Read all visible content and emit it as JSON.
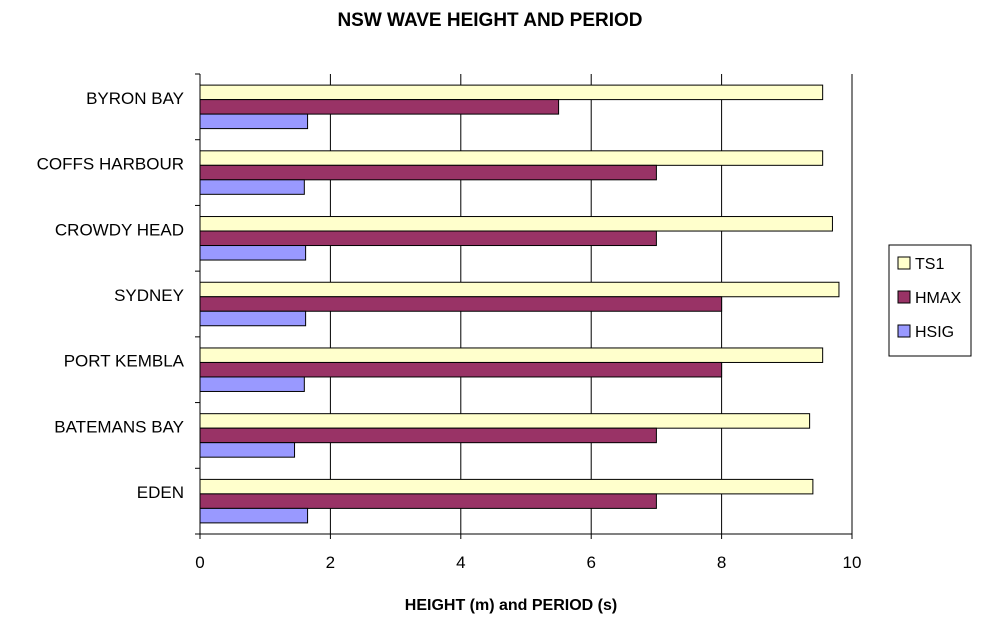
{
  "chart_data": {
    "type": "bar",
    "orientation": "horizontal",
    "title": "NSW WAVE HEIGHT AND PERIOD",
    "xlabel": "HEIGHT (m) and PERIOD (s)",
    "ylabel": "",
    "xlim": [
      0,
      10
    ],
    "xticks": [
      "0",
      "2",
      "4",
      "6",
      "8",
      "10"
    ],
    "grid": true,
    "legend_position": "right",
    "categories": [
      "BYRON BAY",
      "COFFS HARBOUR",
      "CROWDY HEAD",
      "SYDNEY",
      "PORT KEMBLA",
      "BATEMANS BAY",
      "EDEN"
    ],
    "series": [
      {
        "name": "TS1",
        "color": "#FFFFCC",
        "values": [
          9.55,
          9.55,
          9.7,
          9.8,
          9.55,
          9.35,
          9.4
        ]
      },
      {
        "name": "HMAX",
        "color": "#993366",
        "values": [
          5.5,
          7.0,
          7.0,
          8.0,
          8.0,
          7.0,
          7.0
        ]
      },
      {
        "name": "HSIG",
        "color": "#9999FF",
        "values": [
          1.65,
          1.6,
          1.62,
          1.62,
          1.6,
          1.45,
          1.65
        ]
      }
    ]
  }
}
